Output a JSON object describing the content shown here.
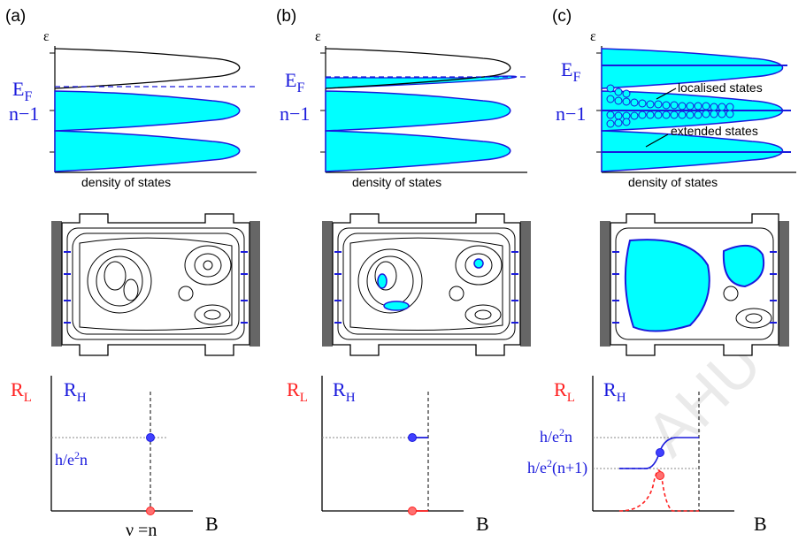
{
  "panels": [
    {
      "label": "(a)",
      "dos": {
        "epsilon": "ε",
        "ef": "E",
        "ef_sub": "F",
        "level": "n−1",
        "xlabel": "density of states"
      },
      "r": {
        "rl": "R",
        "rl_sub": "L",
        "rh": "R",
        "rh_sub": "H",
        "quantum": "h/e",
        "quantum_sup": "2",
        "quantum_tail": "n",
        "nu": "ν =n",
        "b": "B"
      }
    },
    {
      "label": "(b)",
      "dos": {
        "epsilon": "ε",
        "ef": "E",
        "ef_sub": "F",
        "level": "n−1",
        "xlabel": "density of states"
      },
      "r": {
        "rl": "R",
        "rl_sub": "L",
        "rh": "R",
        "rh_sub": "H",
        "b": "B"
      }
    },
    {
      "label": "(c)",
      "dos": {
        "epsilon": "ε",
        "ef": "E",
        "ef_sub": "F",
        "level": "n−1",
        "xlabel": "density of states",
        "localised": "localised states",
        "extended": "extended states"
      },
      "r": {
        "rl": "R",
        "rl_sub": "L",
        "rh": "R",
        "rh_sub": "H",
        "quantum": "h/e",
        "quantum_sup": "2",
        "quantum_tail": "n",
        "quantum2": "h/e",
        "quantum2_sup": "2",
        "quantum2_tail": "(n+1)",
        "b": "B"
      }
    }
  ],
  "watermark": "AHU",
  "colors": {
    "fill": "#00ffff",
    "blue": "#1a1adc",
    "red": "#ff2020",
    "grey": "#999999"
  }
}
